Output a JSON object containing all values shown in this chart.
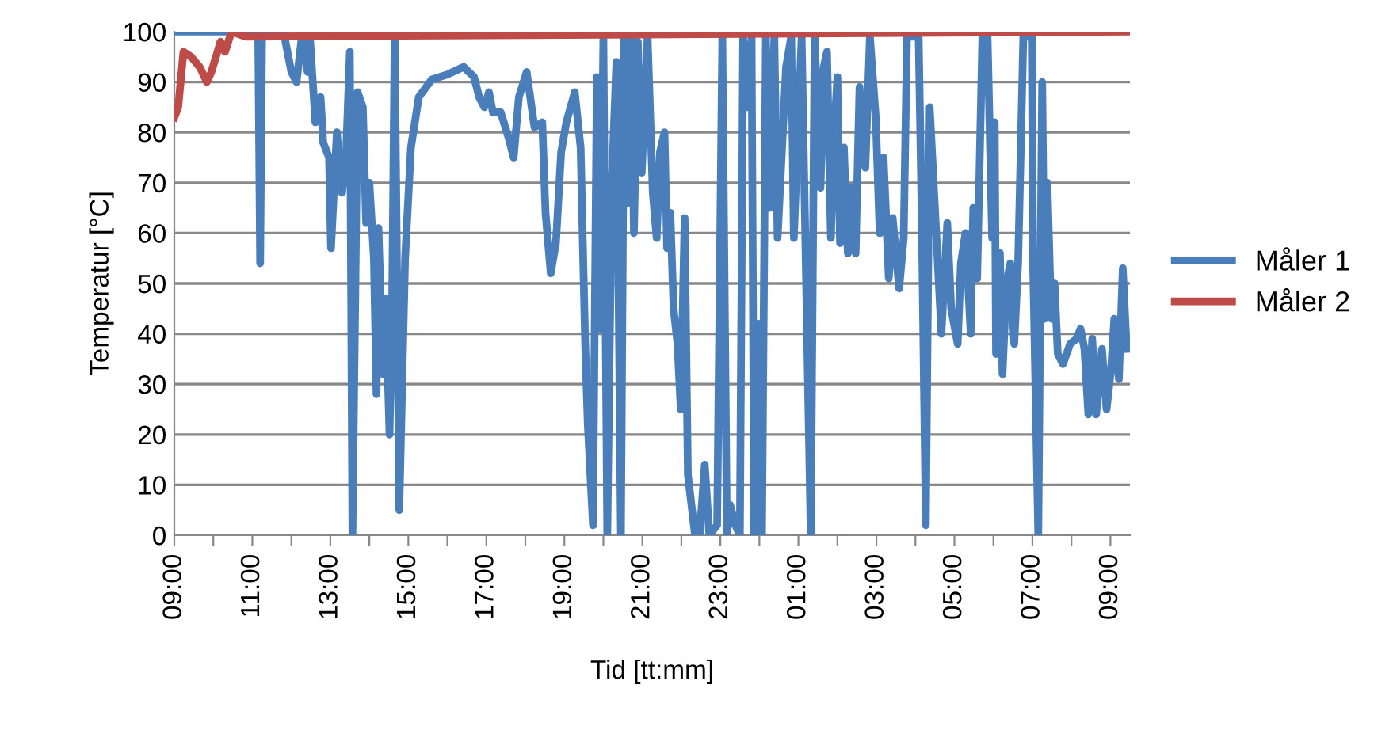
{
  "chart_data": {
    "type": "line",
    "xlabel": "Tid [tt:mm]",
    "ylabel": "Temperatur [°C]",
    "xlim": [
      "2000-01-01T09:00",
      "2000-01-02T09:30"
    ],
    "ylim": [
      0,
      100
    ],
    "xticks": [
      {
        "value": "2000-01-01T09:00",
        "label": "09:00"
      },
      {
        "value": "2000-01-01T10:00",
        "label": null
      },
      {
        "value": "2000-01-01T11:00",
        "label": "11:00"
      },
      {
        "value": "2000-01-01T12:00",
        "label": null
      },
      {
        "value": "2000-01-01T13:00",
        "label": "13:00"
      },
      {
        "value": "2000-01-01T14:00",
        "label": null
      },
      {
        "value": "2000-01-01T15:00",
        "label": "15:00"
      },
      {
        "value": "2000-01-01T16:00",
        "label": null
      },
      {
        "value": "2000-01-01T17:00",
        "label": "17:00"
      },
      {
        "value": "2000-01-01T18:00",
        "label": null
      },
      {
        "value": "2000-01-01T19:00",
        "label": "19:00"
      },
      {
        "value": "2000-01-01T20:00",
        "label": null
      },
      {
        "value": "2000-01-01T21:00",
        "label": "21:00"
      },
      {
        "value": "2000-01-01T22:00",
        "label": null
      },
      {
        "value": "2000-01-01T23:00",
        "label": "23:00"
      },
      {
        "value": "2000-01-02T00:00",
        "label": null
      },
      {
        "value": "2000-01-02T01:00",
        "label": "01:00"
      },
      {
        "value": "2000-01-02T02:00",
        "label": null
      },
      {
        "value": "2000-01-02T03:00",
        "label": "03:00"
      },
      {
        "value": "2000-01-02T04:00",
        "label": null
      },
      {
        "value": "2000-01-02T05:00",
        "label": "05:00"
      },
      {
        "value": "2000-01-02T06:00",
        "label": null
      },
      {
        "value": "2000-01-02T07:00",
        "label": "07:00"
      },
      {
        "value": "2000-01-02T08:00",
        "label": null
      },
      {
        "value": "2000-01-02T09:00",
        "label": "09:00"
      }
    ],
    "yticks": [
      0,
      10,
      20,
      30,
      40,
      50,
      60,
      70,
      80,
      90,
      100
    ],
    "grid": "y",
    "legend": "right",
    "marker": "none",
    "line_style": "solid",
    "series": [
      {
        "name": "Måler 1",
        "color": "#4a7ebb",
        "x": [
          "2000-01-01T09:00",
          "2000-01-01T11:09",
          "2000-01-01T11:12",
          "2000-01-01T11:15",
          "2000-01-01T11:48",
          "2000-01-01T12:00",
          "2000-01-01T12:08",
          "2000-01-01T12:17",
          "2000-01-01T12:25",
          "2000-01-01T12:29",
          "2000-01-01T12:37",
          "2000-01-01T12:45",
          "2000-01-01T12:49",
          "2000-01-01T12:58",
          "2000-01-01T13:01",
          "2000-01-01T13:10",
          "2000-01-01T13:18",
          "2000-01-01T13:24",
          "2000-01-01T13:30",
          "2000-01-01T13:34",
          "2000-01-01T13:42",
          "2000-01-01T13:50",
          "2000-01-01T13:55",
          "2000-01-01T14:00",
          "2000-01-01T14:07",
          "2000-01-01T14:11",
          "2000-01-01T14:14",
          "2000-01-01T14:21",
          "2000-01-01T14:25",
          "2000-01-01T14:31",
          "2000-01-01T14:35",
          "2000-01-01T14:39",
          "2000-01-01T14:46",
          "2000-01-01T14:55",
          "2000-01-01T15:04",
          "2000-01-01T15:16",
          "2000-01-01T15:36",
          "2000-01-01T16:00",
          "2000-01-01T16:25",
          "2000-01-01T16:41",
          "2000-01-01T16:49",
          "2000-01-01T16:57",
          "2000-01-01T17:04",
          "2000-01-01T17:10",
          "2000-01-01T17:22",
          "2000-01-01T17:34",
          "2000-01-01T17:42",
          "2000-01-01T17:50",
          "2000-01-01T18:02",
          "2000-01-01T18:14",
          "2000-01-01T18:26",
          "2000-01-01T18:31",
          "2000-01-01T18:39",
          "2000-01-01T18:47",
          "2000-01-01T18:55",
          "2000-01-01T19:03",
          "2000-01-01T19:16",
          "2000-01-01T19:25",
          "2000-01-01T19:32",
          "2000-01-01T19:36",
          "2000-01-01T19:44",
          "2000-01-01T19:50",
          "2000-01-01T19:55",
          "2000-01-01T20:00",
          "2000-01-01T20:06",
          "2000-01-01T20:13",
          "2000-01-01T20:20",
          "2000-01-01T20:27",
          "2000-01-01T20:32",
          "2000-01-01T20:38",
          "2000-01-01T20:43",
          "2000-01-01T20:47",
          "2000-01-01T20:53",
          "2000-01-01T20:59",
          "2000-01-01T21:08",
          "2000-01-01T21:16",
          "2000-01-01T21:22",
          "2000-01-01T21:27",
          "2000-01-01T21:34",
          "2000-01-01T21:38",
          "2000-01-01T21:43",
          "2000-01-01T21:48",
          "2000-01-01T21:54",
          "2000-01-01T21:59",
          "2000-01-01T22:05",
          "2000-01-01T22:10",
          "2000-01-01T22:21",
          "2000-01-01T22:28",
          "2000-01-01T22:36",
          "2000-01-01T22:43",
          "2000-01-01T22:55",
          "2000-01-01T23:03",
          "2000-01-01T23:10",
          "2000-01-01T23:15",
          "2000-01-01T23:23",
          "2000-01-01T23:30",
          "2000-01-01T23:35",
          "2000-01-01T23:42",
          "2000-01-01T23:48",
          "2000-01-01T23:52",
          "2000-01-01T23:58",
          "2000-01-02T00:04",
          "2000-01-02T00:10",
          "2000-01-02T00:16",
          "2000-01-02T00:23",
          "2000-01-02T00:28",
          "2000-01-02T00:41",
          "2000-01-02T00:49",
          "2000-01-02T00:53",
          "2000-01-02T01:05",
          "2000-01-02T01:19",
          "2000-01-02T01:25",
          "2000-01-02T01:34",
          "2000-01-02T01:39",
          "2000-01-02T01:44",
          "2000-01-02T01:50",
          "2000-01-02T01:55",
          "2000-01-02T02:00",
          "2000-01-02T02:04",
          "2000-01-02T02:10",
          "2000-01-02T02:16",
          "2000-01-02T02:22",
          "2000-01-02T02:28",
          "2000-01-02T02:34",
          "2000-01-02T02:43",
          "2000-01-02T02:50",
          "2000-01-02T02:59",
          "2000-01-02T03:05",
          "2000-01-02T03:11",
          "2000-01-02T03:19",
          "2000-01-02T03:25",
          "2000-01-02T03:35",
          "2000-01-02T03:42",
          "2000-01-02T03:47",
          "2000-01-02T04:05",
          "2000-01-02T04:10",
          "2000-01-02T04:16",
          "2000-01-02T04:22",
          "2000-01-02T04:28",
          "2000-01-02T04:40",
          "2000-01-02T04:49",
          "2000-01-02T04:55",
          "2000-01-02T05:05",
          "2000-01-02T05:10",
          "2000-01-02T05:17",
          "2000-01-02T05:25",
          "2000-01-02T05:29",
          "2000-01-02T05:35",
          "2000-01-02T05:43",
          "2000-01-02T05:51",
          "2000-01-02T05:58",
          "2000-01-02T06:02",
          "2000-01-02T06:04",
          "2000-01-02T06:10",
          "2000-01-02T06:14",
          "2000-01-02T06:20",
          "2000-01-02T06:26",
          "2000-01-02T06:32",
          "2000-01-02T06:38",
          "2000-01-02T06:46",
          "2000-01-02T06:59",
          "2000-01-02T07:01",
          "2000-01-02T07:09",
          "2000-01-02T07:15",
          "2000-01-02T07:19",
          "2000-01-02T07:23",
          "2000-01-02T07:29",
          "2000-01-02T07:34",
          "2000-01-02T07:39",
          "2000-01-02T07:47",
          "2000-01-02T07:58",
          "2000-01-02T08:08",
          "2000-01-02T08:14",
          "2000-01-02T08:20",
          "2000-01-02T08:26",
          "2000-01-02T08:32",
          "2000-01-02T08:38",
          "2000-01-02T08:47",
          "2000-01-02T08:54",
          "2000-01-02T09:01",
          "2000-01-02T09:06",
          "2000-01-02T09:13",
          "2000-01-02T09:19",
          "2000-01-02T09:25"
        ],
        "values": [
          100,
          100,
          54,
          100,
          100,
          92,
          90,
          100,
          92,
          98,
          82,
          87,
          78,
          75,
          57,
          80,
          68,
          75,
          96,
          0,
          88,
          85,
          62,
          70,
          55,
          28,
          61,
          32,
          47,
          20,
          45,
          100,
          5,
          55,
          77,
          87,
          90.5,
          91.5,
          93,
          91,
          87,
          85,
          88,
          84,
          84,
          79,
          75,
          87,
          92,
          81,
          82,
          64,
          52,
          58,
          76,
          82,
          88,
          77,
          38,
          22,
          2,
          91,
          41,
          99,
          0,
          70,
          94,
          0,
          99,
          66,
          99,
          60,
          98,
          72,
          99,
          68,
          59,
          76,
          80,
          57,
          64,
          45,
          38,
          25,
          63,
          12,
          0,
          0,
          14,
          0,
          2,
          99,
          0,
          6,
          2,
          0,
          99,
          85,
          99,
          0,
          42,
          0,
          99,
          65,
          99,
          59,
          93,
          99,
          59,
          99,
          0,
          99,
          69,
          93,
          96,
          59,
          80,
          91,
          58,
          77,
          56,
          69,
          56,
          89,
          73,
          99,
          83,
          60,
          75,
          51,
          63,
          49,
          59,
          99,
          99,
          61,
          2,
          85,
          70,
          40,
          62,
          45,
          38,
          54,
          60,
          40,
          65,
          51,
          99,
          99,
          59,
          82,
          36,
          56,
          32,
          50,
          54,
          38,
          54,
          99,
          99,
          54,
          0,
          90,
          43,
          70,
          43,
          50,
          36,
          34,
          38,
          39,
          41,
          37,
          24,
          39,
          24,
          37,
          25,
          33,
          43,
          31,
          53,
          37
        ]
      },
      {
        "name": "Måler 2",
        "color": "#be4b48",
        "x": [
          "2000-01-01T09:00",
          "2000-01-01T09:06",
          "2000-01-01T09:14",
          "2000-01-01T09:26",
          "2000-01-01T09:39",
          "2000-01-01T09:50",
          "2000-01-01T09:57",
          "2000-01-01T10:11",
          "2000-01-01T10:18",
          "2000-01-01T10:28",
          "2000-01-01T10:50",
          "2000-01-02T09:30"
        ],
        "values": [
          83,
          85,
          96,
          95,
          93,
          90,
          92,
          98,
          96,
          100,
          99,
          100
        ]
      }
    ]
  }
}
